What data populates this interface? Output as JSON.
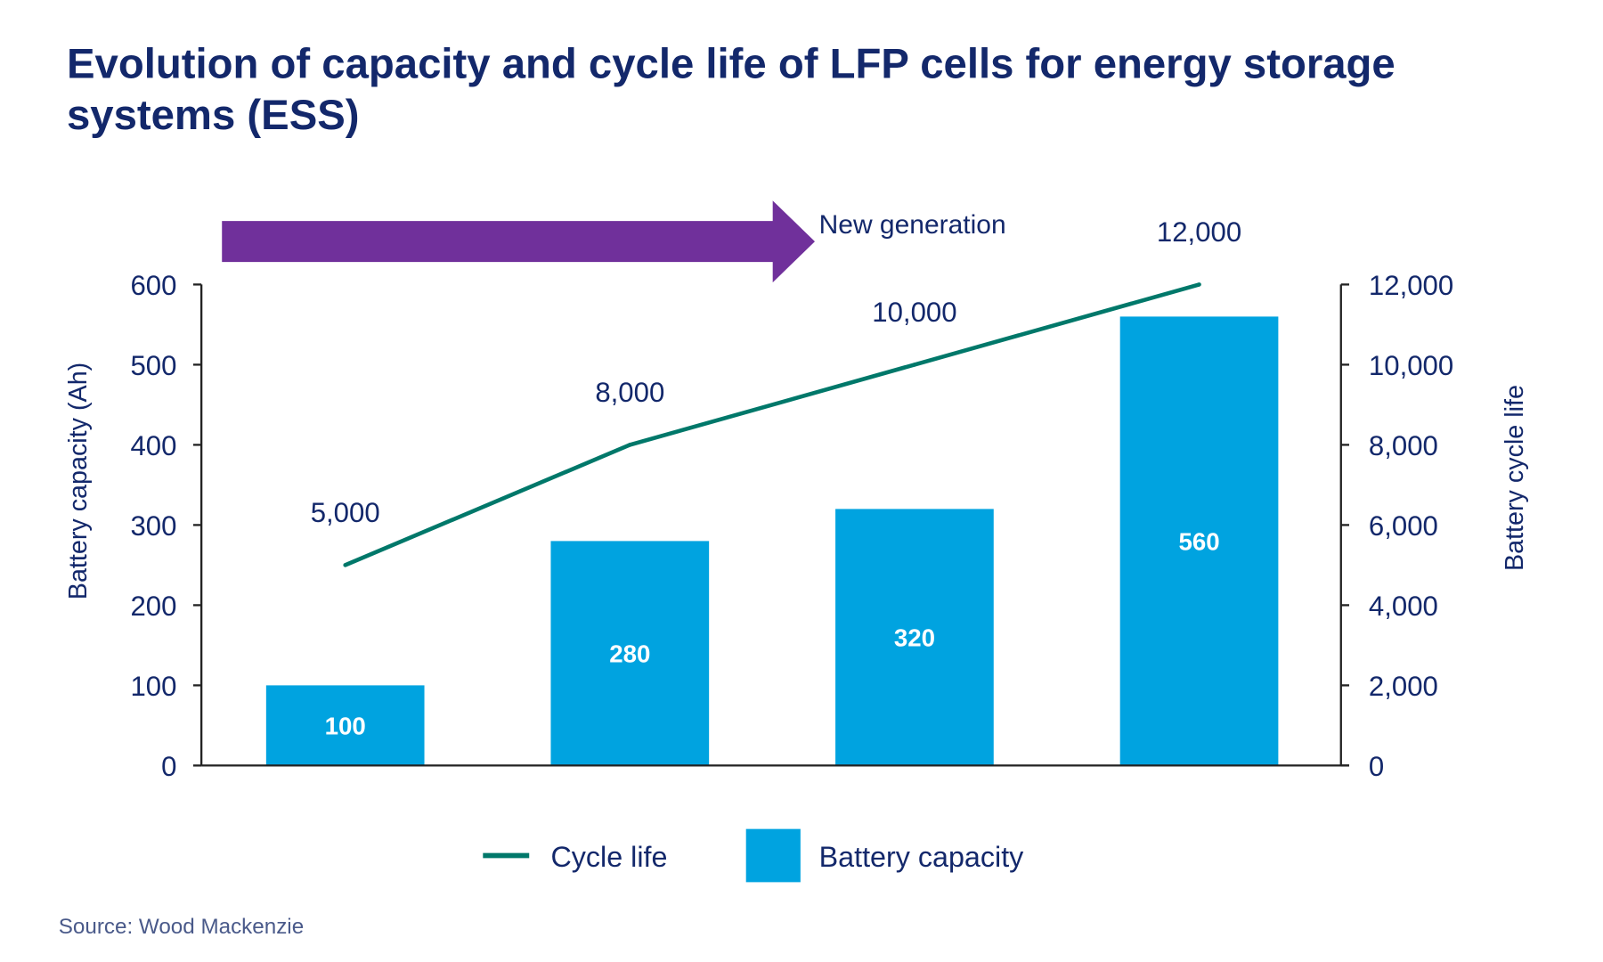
{
  "colors": {
    "text": "#13286b",
    "bar": "#00a3e0",
    "line": "#00786a",
    "arrow": "#70309b",
    "source": "#4a5a8a",
    "axis": "#222222"
  },
  "chart_data": {
    "type": "bar+line",
    "title_lines": [
      "Evolution of capacity and cycle life of LFP cells for energy storage",
      "systems (ESS)"
    ],
    "categories": [
      "",
      "",
      "",
      ""
    ],
    "series": [
      {
        "name": "Battery capacity",
        "type": "bar",
        "axis": "left",
        "values": [
          100,
          280,
          320,
          560
        ],
        "labels": [
          "100",
          "280",
          "320",
          "560"
        ]
      },
      {
        "name": "Cycle life",
        "type": "line",
        "axis": "right",
        "values": [
          5000,
          8000,
          10000,
          12000
        ],
        "labels": [
          "5,000",
          "8,000",
          "10,000",
          "12,000"
        ]
      }
    ],
    "ylabel_left": "Battery capacity (Ah)",
    "ylabel_right": "Battery cycle life",
    "ylim_left": [
      0,
      600
    ],
    "ylim_right": [
      0,
      12000
    ],
    "yticks_left": [
      "0",
      "100",
      "200",
      "300",
      "400",
      "500",
      "600"
    ],
    "yticks_right": [
      "0",
      "2,000",
      "4,000",
      "6,000",
      "8,000",
      "10,000",
      "12,000"
    ],
    "grid": false,
    "annotation": {
      "text": "New generation",
      "shape": "arrow-right"
    },
    "legend": {
      "placement": "bottom",
      "items": [
        "Cycle life",
        "Battery capacity"
      ]
    },
    "source": "Source: Wood Mackenzie"
  }
}
